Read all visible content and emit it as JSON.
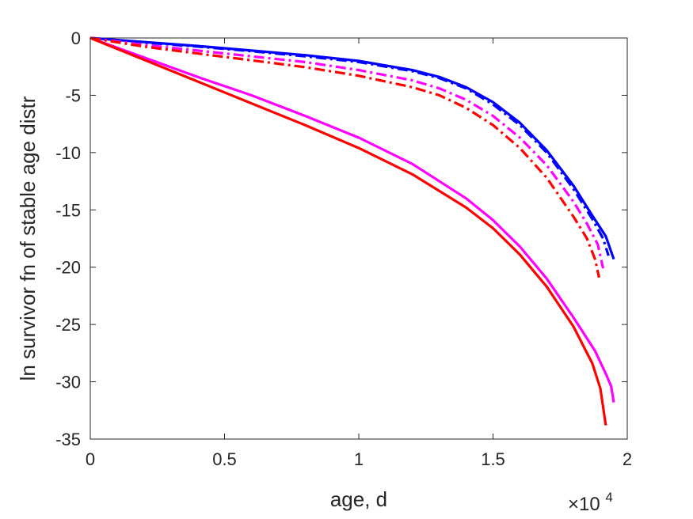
{
  "chart_data": {
    "type": "line",
    "xlabel": "age, d",
    "ylabel": "ln survivor fn of stable age distr",
    "x_exponent_label": {
      "base": "×10",
      "exp": "4"
    },
    "xlim": [
      0,
      20000
    ],
    "ylim": [
      -35,
      0
    ],
    "xticks": [
      0,
      5000,
      10000,
      15000,
      20000
    ],
    "xtick_labels": [
      "0",
      "0.5",
      "1",
      "1.5",
      "2"
    ],
    "yticks": [
      0,
      -5,
      -10,
      -15,
      -20,
      -25,
      -30,
      -35
    ],
    "ytick_labels": [
      "0",
      "-5",
      "-10",
      "-15",
      "-20",
      "-25",
      "-30",
      "-35"
    ],
    "grid": false,
    "box": true,
    "series": [
      {
        "color": "#0000ff",
        "dash": "solid",
        "x": [
          0,
          2000,
          4000,
          6000,
          8000,
          10000,
          12000,
          13000,
          14000,
          15000,
          16000,
          17000,
          18000,
          18700,
          19200,
          19500
        ],
        "y": [
          0,
          -0.35,
          -0.7,
          -1.1,
          -1.5,
          -2.0,
          -2.8,
          -3.4,
          -4.3,
          -5.6,
          -7.4,
          -9.8,
          -12.9,
          -15.5,
          -17.3,
          -19.3
        ]
      },
      {
        "color": "#0000ff",
        "dash": "dashdot",
        "x": [
          0,
          2000,
          4000,
          6000,
          8000,
          10000,
          12000,
          13000,
          14000,
          15000,
          16000,
          17000,
          18000,
          18700,
          19100,
          19300
        ],
        "y": [
          0,
          -0.4,
          -0.75,
          -1.15,
          -1.6,
          -2.1,
          -2.9,
          -3.5,
          -4.4,
          -5.8,
          -7.6,
          -10.0,
          -13.2,
          -15.8,
          -17.5,
          -19.0
        ]
      },
      {
        "color": "#ff00ff",
        "dash": "solid",
        "x": [
          0,
          2000,
          4000,
          6000,
          8000,
          10000,
          12000,
          14000,
          15000,
          16000,
          17000,
          18000,
          18800,
          19200,
          19400,
          19500
        ],
        "y": [
          0,
          -1.7,
          -3.4,
          -5.0,
          -6.8,
          -8.7,
          -11.0,
          -14.0,
          -15.9,
          -18.2,
          -21.0,
          -24.4,
          -27.3,
          -29.3,
          -30.4,
          -31.8
        ]
      },
      {
        "color": "#ff00ff",
        "dash": "dashdot",
        "x": [
          0,
          2000,
          4000,
          6000,
          8000,
          10000,
          12000,
          13000,
          14000,
          15000,
          16000,
          17000,
          18000,
          18500,
          18900,
          19100
        ],
        "y": [
          0,
          -0.6,
          -1.1,
          -1.6,
          -2.1,
          -2.8,
          -3.7,
          -4.4,
          -5.4,
          -6.8,
          -8.7,
          -11.1,
          -14.3,
          -16.2,
          -18.0,
          -20.1
        ]
      },
      {
        "color": "#ff0000",
        "dash": "solid",
        "x": [
          0,
          2000,
          4000,
          6000,
          8000,
          10000,
          12000,
          14000,
          15000,
          16000,
          17000,
          18000,
          18700,
          19000,
          19200
        ],
        "y": [
          0,
          -1.9,
          -3.8,
          -5.7,
          -7.6,
          -9.6,
          -11.9,
          -14.8,
          -16.6,
          -18.9,
          -21.7,
          -25.2,
          -28.4,
          -30.6,
          -33.8
        ]
      },
      {
        "color": "#ff0000",
        "dash": "dashdot",
        "x": [
          0,
          2000,
          4000,
          6000,
          8000,
          10000,
          12000,
          13000,
          14000,
          15000,
          16000,
          17000,
          18000,
          18500,
          18800,
          18950
        ],
        "y": [
          0,
          -0.75,
          -1.35,
          -1.95,
          -2.55,
          -3.3,
          -4.3,
          -5.0,
          -6.1,
          -7.6,
          -9.6,
          -12.2,
          -15.6,
          -17.5,
          -19.3,
          -20.9
        ]
      }
    ]
  }
}
